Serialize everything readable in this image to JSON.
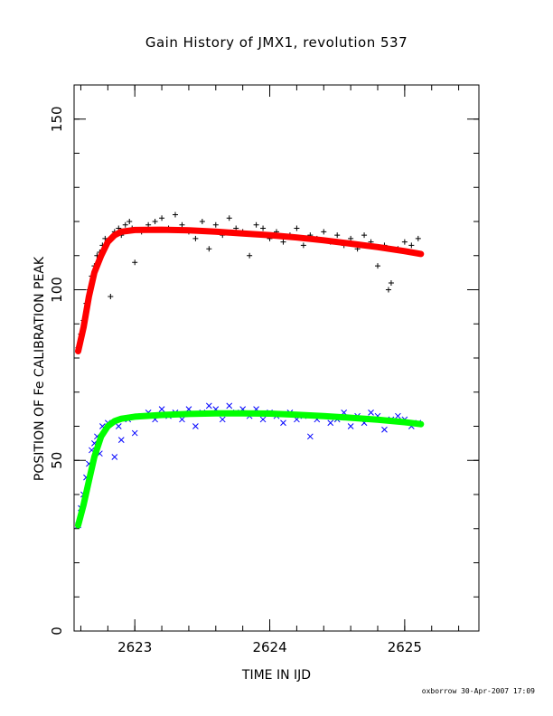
{
  "chart_data": {
    "type": "scatter",
    "title": "Gain History of JMX1, revolution 537",
    "xlabel": "TIME IN IJD",
    "ylabel": "POSITION OF Fe CALIBRATION PEAK",
    "footer": "oxborrow 30-Apr-2007 17:09",
    "xlim": [
      2622.55,
      2625.55
    ],
    "ylim": [
      0,
      160
    ],
    "xticks": [
      "2623",
      "2624",
      "2625"
    ],
    "yticks": [
      "0",
      "50",
      "100",
      "150"
    ],
    "series": [
      {
        "marker": "plus",
        "color": "#000000",
        "points": [
          [
            2622.58,
            83
          ],
          [
            2622.6,
            87
          ],
          [
            2622.62,
            91
          ],
          [
            2622.64,
            96
          ],
          [
            2622.66,
            100
          ],
          [
            2622.68,
            104
          ],
          [
            2622.7,
            107
          ],
          [
            2622.72,
            110
          ],
          [
            2622.74,
            111
          ],
          [
            2622.76,
            113
          ],
          [
            2622.78,
            115
          ],
          [
            2622.8,
            114
          ],
          [
            2622.82,
            98
          ],
          [
            2622.85,
            117
          ],
          [
            2622.88,
            118
          ],
          [
            2622.9,
            116
          ],
          [
            2622.93,
            119
          ],
          [
            2622.96,
            120
          ],
          [
            2622.98,
            118
          ],
          [
            2623.0,
            108
          ],
          [
            2623.05,
            117
          ],
          [
            2623.1,
            119
          ],
          [
            2623.15,
            120
          ],
          [
            2623.2,
            121
          ],
          [
            2623.25,
            118
          ],
          [
            2623.3,
            122
          ],
          [
            2623.35,
            119
          ],
          [
            2623.4,
            117
          ],
          [
            2623.45,
            115
          ],
          [
            2623.5,
            120
          ],
          [
            2623.55,
            112
          ],
          [
            2623.6,
            119
          ],
          [
            2623.65,
            116
          ],
          [
            2623.7,
            121
          ],
          [
            2623.75,
            118
          ],
          [
            2623.8,
            117
          ],
          [
            2623.85,
            110
          ],
          [
            2623.9,
            119
          ],
          [
            2623.95,
            118
          ],
          [
            2624.0,
            115
          ],
          [
            2624.05,
            117
          ],
          [
            2624.1,
            114
          ],
          [
            2624.15,
            116
          ],
          [
            2624.2,
            118
          ],
          [
            2624.25,
            113
          ],
          [
            2624.3,
            116
          ],
          [
            2624.35,
            115
          ],
          [
            2624.4,
            117
          ],
          [
            2624.45,
            114
          ],
          [
            2624.5,
            116
          ],
          [
            2624.55,
            113
          ],
          [
            2624.6,
            115
          ],
          [
            2624.65,
            112
          ],
          [
            2624.7,
            116
          ],
          [
            2624.75,
            114
          ],
          [
            2624.8,
            107
          ],
          [
            2624.85,
            113
          ],
          [
            2624.88,
            100
          ],
          [
            2624.9,
            102
          ],
          [
            2624.95,
            112
          ],
          [
            2625.0,
            114
          ],
          [
            2625.05,
            113
          ],
          [
            2625.1,
            115
          ]
        ]
      },
      {
        "marker": "cross",
        "color": "#0000ff",
        "points": [
          [
            2622.58,
            31
          ],
          [
            2622.6,
            36
          ],
          [
            2622.62,
            40
          ],
          [
            2622.64,
            45
          ],
          [
            2622.66,
            49
          ],
          [
            2622.68,
            53
          ],
          [
            2622.7,
            55
          ],
          [
            2622.72,
            57
          ],
          [
            2622.74,
            52
          ],
          [
            2622.76,
            60
          ],
          [
            2622.8,
            61
          ],
          [
            2622.85,
            51
          ],
          [
            2622.88,
            60
          ],
          [
            2622.9,
            56
          ],
          [
            2622.95,
            62
          ],
          [
            2623.0,
            58
          ],
          [
            2623.05,
            63
          ],
          [
            2623.1,
            64
          ],
          [
            2623.15,
            62
          ],
          [
            2623.2,
            65
          ],
          [
            2623.25,
            63
          ],
          [
            2623.3,
            64
          ],
          [
            2623.35,
            62
          ],
          [
            2623.4,
            65
          ],
          [
            2623.45,
            60
          ],
          [
            2623.5,
            64
          ],
          [
            2623.55,
            66
          ],
          [
            2623.6,
            65
          ],
          [
            2623.65,
            62
          ],
          [
            2623.7,
            66
          ],
          [
            2623.75,
            64
          ],
          [
            2623.8,
            65
          ],
          [
            2623.85,
            63
          ],
          [
            2623.9,
            65
          ],
          [
            2623.95,
            62
          ],
          [
            2624.0,
            64
          ],
          [
            2624.05,
            63
          ],
          [
            2624.1,
            61
          ],
          [
            2624.15,
            64
          ],
          [
            2624.2,
            62
          ],
          [
            2624.25,
            63
          ],
          [
            2624.3,
            57
          ],
          [
            2624.35,
            62
          ],
          [
            2624.4,
            63
          ],
          [
            2624.45,
            61
          ],
          [
            2624.5,
            62
          ],
          [
            2624.55,
            64
          ],
          [
            2624.6,
            60
          ],
          [
            2624.65,
            63
          ],
          [
            2624.7,
            61
          ],
          [
            2624.75,
            64
          ],
          [
            2624.8,
            63
          ],
          [
            2624.85,
            59
          ],
          [
            2624.9,
            62
          ],
          [
            2624.95,
            63
          ],
          [
            2625.0,
            62
          ],
          [
            2625.05,
            60
          ],
          [
            2625.1,
            61
          ]
        ]
      },
      {
        "type": "line",
        "color": "#ff0000",
        "points": [
          [
            2622.58,
            82
          ],
          [
            2622.62,
            89
          ],
          [
            2622.66,
            98
          ],
          [
            2622.7,
            105
          ],
          [
            2622.75,
            110
          ],
          [
            2622.8,
            114
          ],
          [
            2622.85,
            116
          ],
          [
            2622.9,
            117
          ],
          [
            2623.0,
            117.5
          ],
          [
            2623.2,
            117.6
          ],
          [
            2623.4,
            117.4
          ],
          [
            2623.6,
            117.0
          ],
          [
            2623.8,
            116.5
          ],
          [
            2624.0,
            116.0
          ],
          [
            2624.2,
            115.3
          ],
          [
            2624.4,
            114.5
          ],
          [
            2624.6,
            113.5
          ],
          [
            2624.8,
            112.5
          ],
          [
            2625.0,
            111.3
          ],
          [
            2625.12,
            110.5
          ]
        ]
      },
      {
        "type": "line",
        "color": "#00ff00",
        "points": [
          [
            2622.58,
            31
          ],
          [
            2622.62,
            37
          ],
          [
            2622.66,
            44
          ],
          [
            2622.7,
            51
          ],
          [
            2622.75,
            57
          ],
          [
            2622.8,
            60
          ],
          [
            2622.85,
            61.5
          ],
          [
            2622.9,
            62.2
          ],
          [
            2623.0,
            62.8
          ],
          [
            2623.2,
            63.3
          ],
          [
            2623.4,
            63.6
          ],
          [
            2623.6,
            63.8
          ],
          [
            2623.8,
            63.8
          ],
          [
            2624.0,
            63.7
          ],
          [
            2624.2,
            63.4
          ],
          [
            2624.4,
            63.0
          ],
          [
            2624.6,
            62.5
          ],
          [
            2624.8,
            61.9
          ],
          [
            2625.0,
            61.2
          ],
          [
            2625.12,
            60.6
          ]
        ]
      }
    ]
  }
}
